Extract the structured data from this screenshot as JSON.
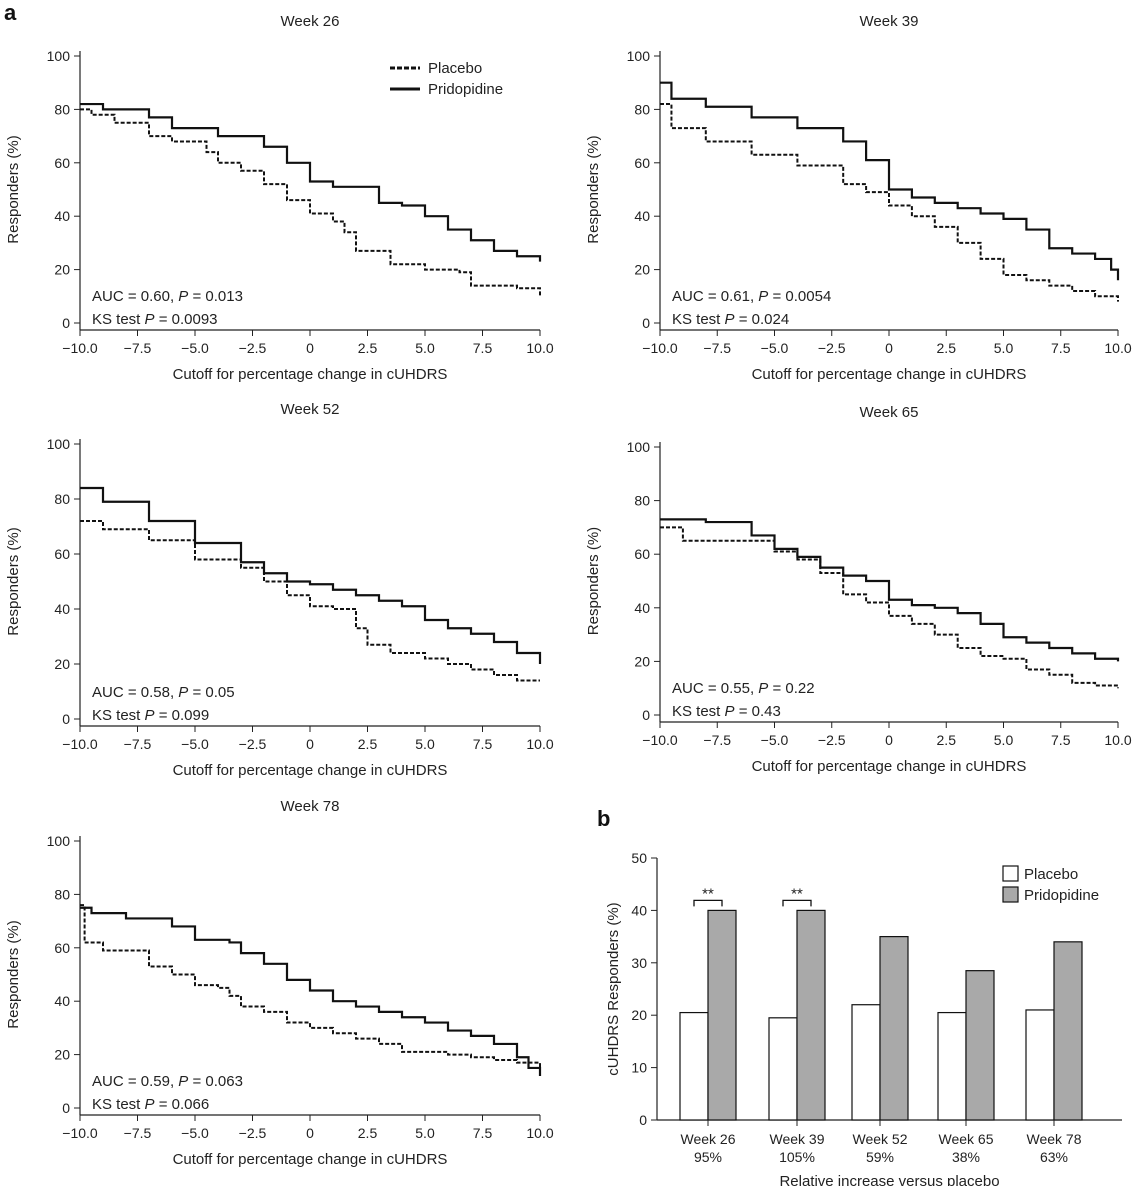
{
  "panel_labels": {
    "a": "a",
    "b": "b"
  },
  "chart_data": [
    {
      "type": "line",
      "title": "Week 26",
      "xlabel": "Cutoff for percentage change in cUHDRS",
      "ylabel": "Responders (%)",
      "xlim": [
        -10,
        10
      ],
      "ylim": [
        0,
        100
      ],
      "xticks": [
        "-10.0",
        "-7.5",
        "-5.0",
        "-2.5",
        "0",
        "2.5",
        "5.0",
        "7.5",
        "10.0"
      ],
      "yticks": [
        "0",
        "20",
        "40",
        "60",
        "80",
        "100"
      ],
      "legend": {
        "placement": "top-right",
        "entries": [
          "Placebo",
          "Pridopidine"
        ]
      },
      "annotations": [
        "AUC = 0.60, P = 0.013",
        "KS test P = 0.0093"
      ],
      "series": [
        {
          "name": "Placebo",
          "style": "dashed",
          "x": [
            -10,
            -9.5,
            -8.5,
            -7,
            -6,
            -4.5,
            -4,
            -3,
            -2,
            -1,
            0,
            1,
            1.5,
            2,
            3.5,
            5,
            6.5,
            7,
            9,
            10
          ],
          "y": [
            80,
            78,
            75,
            70,
            68,
            64,
            60,
            57,
            52,
            46,
            41,
            38,
            34,
            27,
            22,
            20,
            19,
            14,
            13,
            10
          ]
        },
        {
          "name": "Pridopidine",
          "style": "solid",
          "x": [
            -10,
            -9,
            -7,
            -6,
            -4,
            -2,
            -1,
            0,
            1,
            2,
            3,
            4,
            5,
            6,
            7,
            8,
            9,
            10
          ],
          "y": [
            82,
            80,
            77,
            73,
            70,
            66,
            60,
            53,
            51,
            51,
            45,
            44,
            40,
            35,
            31,
            27,
            25,
            23
          ]
        }
      ]
    },
    {
      "type": "line",
      "title": "Week 39",
      "xlabel": "Cutoff for percentage change in cUHDRS",
      "ylabel": "Responders (%)",
      "xlim": [
        -10,
        10
      ],
      "ylim": [
        0,
        100
      ],
      "xticks": [
        "-10.0",
        "-7.5",
        "-5.0",
        "-2.5",
        "0",
        "2.5",
        "5.0",
        "7.5",
        "10.0"
      ],
      "yticks": [
        "0",
        "20",
        "40",
        "60",
        "80",
        "100"
      ],
      "annotations": [
        "AUC = 0.61, P = 0.0054",
        "KS test P = 0.024"
      ],
      "series": [
        {
          "name": "Placebo",
          "style": "dashed",
          "x": [
            -10,
            -9.5,
            -8,
            -6,
            -4,
            -2,
            -1,
            0,
            1,
            2,
            3,
            4,
            5,
            6,
            7,
            8,
            9,
            10
          ],
          "y": [
            82,
            73,
            68,
            63,
            59,
            52,
            49,
            44,
            40,
            36,
            30,
            24,
            18,
            16,
            14,
            12,
            10,
            8
          ]
        },
        {
          "name": "Pridopidine",
          "style": "solid",
          "x": [
            -10,
            -9.5,
            -8,
            -6,
            -4,
            -2,
            -1,
            0,
            1,
            2,
            3,
            4,
            5,
            6,
            7,
            8,
            9,
            9.7,
            10
          ],
          "y": [
            90,
            84,
            81,
            77,
            73,
            68,
            61,
            50,
            47,
            45,
            43,
            41,
            39,
            35,
            28,
            26,
            24,
            20,
            16
          ]
        }
      ]
    },
    {
      "type": "line",
      "title": "Week 52",
      "xlabel": "Cutoff for percentage change in cUHDRS",
      "ylabel": "Responders (%)",
      "xlim": [
        -10,
        10
      ],
      "ylim": [
        0,
        100
      ],
      "xticks": [
        "-10.0",
        "-7.5",
        "-5.0",
        "-2.5",
        "0",
        "2.5",
        "5.0",
        "7.5",
        "10.0"
      ],
      "yticks": [
        "0",
        "20",
        "40",
        "60",
        "80",
        "100"
      ],
      "annotations": [
        "AUC = 0.58, P = 0.05",
        "KS test P = 0.099"
      ],
      "series": [
        {
          "name": "Placebo",
          "style": "dashed",
          "x": [
            -10,
            -9,
            -7,
            -5,
            -3,
            -2,
            -1,
            0,
            1,
            2,
            2.5,
            3.5,
            5,
            6,
            7,
            8,
            9,
            10
          ],
          "y": [
            72,
            69,
            65,
            58,
            55,
            50,
            45,
            41,
            40,
            33,
            27,
            24,
            22,
            20,
            18,
            16,
            14,
            14
          ]
        },
        {
          "name": "Pridopidine",
          "style": "solid",
          "x": [
            -10,
            -9,
            -7,
            -5,
            -3,
            -2,
            -1,
            0,
            1,
            2,
            3,
            4,
            5,
            6,
            7,
            8,
            9,
            10
          ],
          "y": [
            84,
            79,
            72,
            64,
            57,
            53,
            50,
            49,
            47,
            45,
            43,
            41,
            36,
            33,
            31,
            28,
            24,
            20
          ]
        }
      ]
    },
    {
      "type": "line",
      "title": "Week 65",
      "xlabel": "Cutoff for percentage change in cUHDRS",
      "ylabel": "Responders (%)",
      "xlim": [
        -10,
        10
      ],
      "ylim": [
        0,
        100
      ],
      "xticks": [
        "-10.0",
        "-7.5",
        "-5.0",
        "-2.5",
        "0",
        "2.5",
        "5.0",
        "7.5",
        "10.0"
      ],
      "yticks": [
        "0",
        "20",
        "40",
        "60",
        "80",
        "100"
      ],
      "annotations": [
        "AUC = 0.55, P = 0.22",
        "KS test P = 0.43"
      ],
      "series": [
        {
          "name": "Placebo",
          "style": "dashed",
          "x": [
            -10,
            -9,
            -7,
            -5,
            -4,
            -3,
            -2,
            -1,
            0,
            1,
            2,
            3,
            4,
            5,
            6,
            7,
            8,
            9,
            10
          ],
          "y": [
            70,
            65,
            65,
            61,
            58,
            53,
            45,
            42,
            37,
            34,
            30,
            25,
            22,
            21,
            17,
            15,
            12,
            11,
            10
          ]
        },
        {
          "name": "Pridopidine",
          "style": "solid",
          "x": [
            -10,
            -8,
            -6,
            -5,
            -4,
            -3,
            -2,
            -1,
            0,
            1,
            2,
            3,
            4,
            5,
            6,
            7,
            8,
            9,
            10
          ],
          "y": [
            73,
            72,
            67,
            62,
            59,
            55,
            52,
            50,
            43,
            41,
            40,
            38,
            34,
            29,
            27,
            25,
            23,
            21,
            20
          ]
        }
      ]
    },
    {
      "type": "line",
      "title": "Week 78",
      "xlabel": "Cutoff for percentage change in cUHDRS",
      "ylabel": "Responders (%)",
      "xlim": [
        -10,
        10
      ],
      "ylim": [
        0,
        100
      ],
      "xticks": [
        "-10.0",
        "-7.5",
        "-5.0",
        "-2.5",
        "0",
        "2.5",
        "5.0",
        "7.5",
        "10.0"
      ],
      "yticks": [
        "0",
        "20",
        "40",
        "60",
        "80",
        "100"
      ],
      "annotations": [
        "AUC = 0.59, P = 0.063",
        "KS test P = 0.066"
      ],
      "series": [
        {
          "name": "Placebo",
          "style": "dashed",
          "x": [
            -10,
            -9.8,
            -9,
            -7,
            -6,
            -5,
            -4,
            -3.5,
            -3,
            -2,
            -1,
            0,
            1,
            2,
            3,
            4,
            5,
            6,
            7,
            8,
            9,
            10
          ],
          "y": [
            76,
            62,
            59,
            53,
            50,
            46,
            45,
            42,
            38,
            36,
            32,
            30,
            28,
            26,
            24,
            21,
            21,
            20,
            19,
            18,
            17,
            14
          ]
        },
        {
          "name": "Pridopidine",
          "style": "solid",
          "x": [
            -10,
            -9.5,
            -8,
            -6,
            -5,
            -3.5,
            -3,
            -2,
            -1,
            0,
            1,
            2,
            3,
            4,
            5,
            6,
            7,
            8,
            9,
            9.5,
            10
          ],
          "y": [
            75,
            73,
            71,
            68,
            63,
            62,
            58,
            54,
            48,
            44,
            40,
            38,
            36,
            34,
            32,
            29,
            27,
            24,
            19,
            15,
            12
          ]
        }
      ]
    },
    {
      "type": "bar",
      "ylabel": "cUHDRS Responders (%)",
      "xlabel": "Relative increase versus placebo",
      "categories": [
        "Week 26",
        "Week 39",
        "Week 52",
        "Week 65",
        "Week 78"
      ],
      "category_sublabels": [
        "95%",
        "105%",
        "59%",
        "38%",
        "63%"
      ],
      "ylim": [
        0,
        50
      ],
      "yticks": [
        "0",
        "10",
        "20",
        "30",
        "40",
        "50"
      ],
      "legend": {
        "placement": "top-right",
        "entries": [
          "Placebo",
          "Pridopidine"
        ]
      },
      "significance": [
        "**",
        "**",
        "",
        "",
        ""
      ],
      "colors": {
        "Placebo": "#ffffff",
        "Pridopidine": "#a9a9a9"
      },
      "series": [
        {
          "name": "Placebo",
          "values": [
            20.5,
            19.5,
            22,
            20.5,
            21
          ]
        },
        {
          "name": "Pridopidine",
          "values": [
            40,
            40,
            35,
            28.5,
            34
          ]
        }
      ]
    }
  ]
}
